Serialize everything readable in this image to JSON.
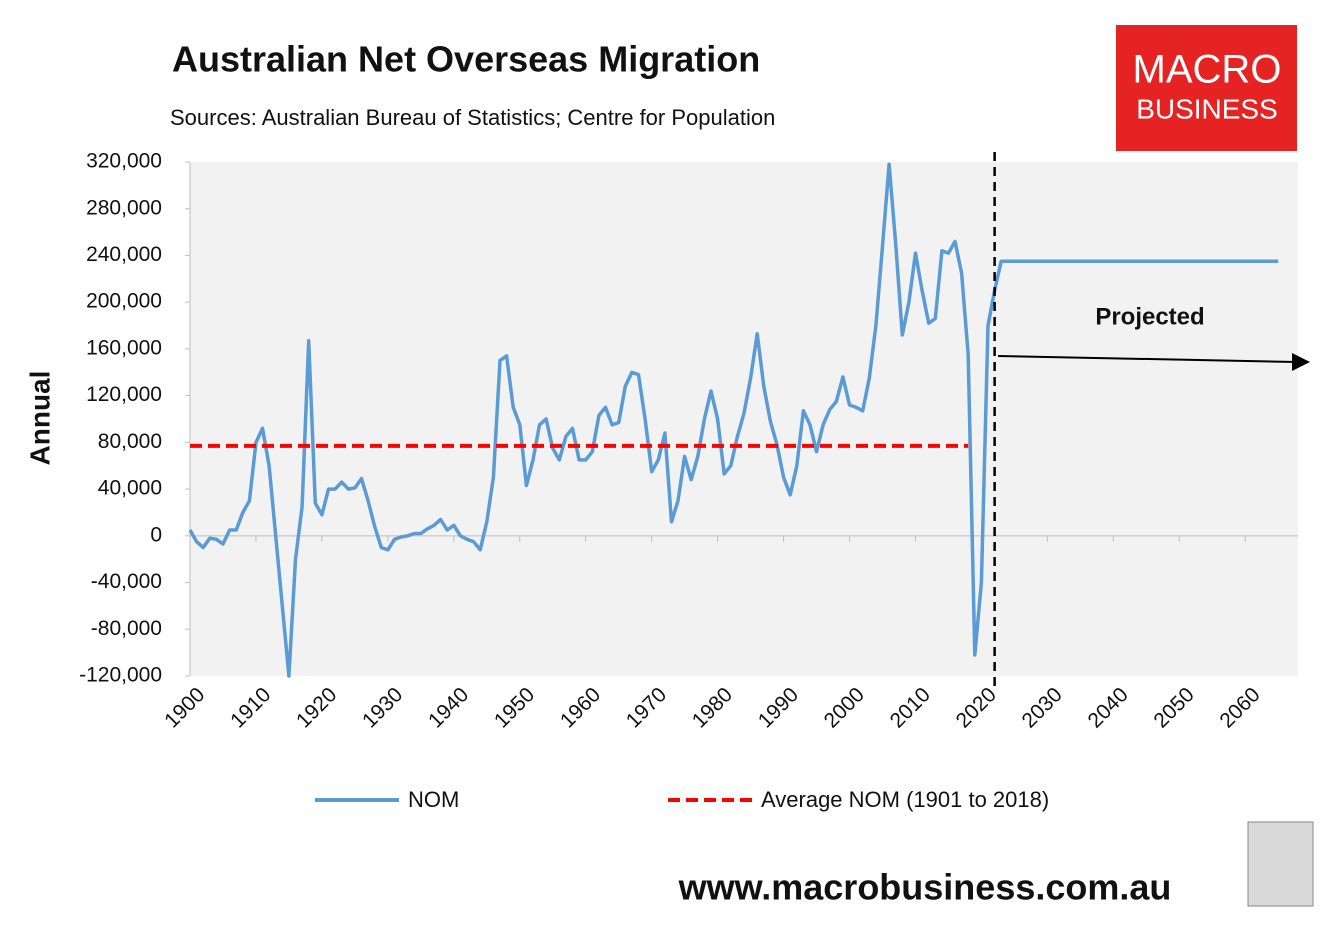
{
  "chart_data": {
    "type": "line",
    "title": "Australian Net Overseas Migration",
    "subtitle": "Sources: Australian Bureau of Statistics; Centre for Population",
    "y_label": "Annual",
    "logo": [
      "MACRO",
      "BUSINESS"
    ],
    "footer": "www.macrobusiness.com.au",
    "annotation": "Projected",
    "projection_start": 2022,
    "xlim": [
      1900,
      2068
    ],
    "xticks": [
      1900,
      1910,
      1920,
      1930,
      1940,
      1950,
      1960,
      1970,
      1980,
      1990,
      2000,
      2010,
      2020,
      2030,
      2040,
      2050,
      2060
    ],
    "ylim": [
      -120000,
      320000
    ],
    "yticks": [
      {
        "value": -120000,
        "label": "-120,000"
      },
      {
        "value": -80000,
        "label": "-80,000"
      },
      {
        "value": -40000,
        "label": "-40,000"
      },
      0,
      {
        "value": 40000,
        "label": "40,000"
      },
      {
        "value": 80000,
        "label": "80,000"
      },
      {
        "value": 120000,
        "label": "120,000"
      },
      {
        "value": 160000,
        "label": "160,000"
      },
      {
        "value": 200000,
        "label": "200,000"
      },
      {
        "value": 240000,
        "label": "240,000"
      },
      {
        "value": 280000,
        "label": "280,000"
      },
      {
        "value": 320000,
        "label": "320,000"
      }
    ],
    "grid": false,
    "legend": "bottom",
    "series": [
      {
        "name": "NOM",
        "color": "#5b9bd5",
        "dashed": false,
        "x": [
          1900,
          1901,
          1902,
          1903,
          1904,
          1905,
          1906,
          1907,
          1908,
          1909,
          1910,
          1911,
          1912,
          1913,
          1914,
          1915,
          1916,
          1917,
          1918,
          1919,
          1920,
          1921,
          1922,
          1923,
          1924,
          1925,
          1926,
          1927,
          1928,
          1929,
          1930,
          1931,
          1932,
          1933,
          1934,
          1935,
          1936,
          1937,
          1938,
          1939,
          1940,
          1941,
          1942,
          1943,
          1944,
          1945,
          1946,
          1947,
          1948,
          1949,
          1950,
          1951,
          1952,
          1953,
          1954,
          1955,
          1956,
          1957,
          1958,
          1959,
          1960,
          1961,
          1962,
          1963,
          1964,
          1965,
          1966,
          1967,
          1968,
          1969,
          1970,
          1971,
          1972,
          1973,
          1974,
          1975,
          1976,
          1977,
          1978,
          1979,
          1980,
          1981,
          1982,
          1983,
          1984,
          1985,
          1986,
          1987,
          1988,
          1989,
          1990,
          1991,
          1992,
          1993,
          1994,
          1995,
          1996,
          1997,
          1998,
          1999,
          2000,
          2001,
          2002,
          2003,
          2004,
          2005,
          2006,
          2007,
          2008,
          2009,
          2010,
          2011,
          2012,
          2013,
          2014,
          2015,
          2016,
          2017,
          2018,
          2019,
          2020,
          2021,
          2022,
          2023,
          2024,
          2025,
          2026,
          2027,
          2028,
          2029,
          2030,
          2031,
          2032,
          2033,
          2034,
          2035,
          2036,
          2037,
          2038,
          2039,
          2040,
          2041,
          2042,
          2043,
          2044,
          2045,
          2046,
          2047,
          2048,
          2049,
          2050,
          2051,
          2052,
          2053,
          2054,
          2055,
          2056,
          2057,
          2058,
          2059,
          2060,
          2061,
          2062,
          2063,
          2064,
          2065
        ],
        "values": [
          5000,
          -5000,
          -10000,
          -2000,
          -3000,
          -7000,
          5000,
          5000,
          20000,
          30000,
          80000,
          92000,
          60000,
          0,
          -60000,
          -120000,
          -20000,
          25000,
          167000,
          28000,
          18000,
          40000,
          40000,
          46000,
          40000,
          41000,
          49000,
          30000,
          8000,
          -10000,
          -12000,
          -3000,
          -1000,
          0,
          2000,
          2000,
          6000,
          9000,
          14000,
          5000,
          9000,
          0,
          -3000,
          -5000,
          -12000,
          12000,
          50000,
          150000,
          154000,
          110000,
          95000,
          43000,
          65000,
          95000,
          100000,
          75000,
          65000,
          85000,
          92000,
          65000,
          65000,
          72000,
          103000,
          110000,
          95000,
          97000,
          128000,
          140000,
          138000,
          100000,
          55000,
          65000,
          88000,
          12000,
          30000,
          68000,
          48000,
          68000,
          100000,
          124000,
          100000,
          53000,
          60000,
          85000,
          105000,
          135000,
          173000,
          128000,
          98000,
          78000,
          50000,
          35000,
          60000,
          107000,
          95000,
          72000,
          95000,
          108000,
          115000,
          136000,
          112000,
          110000,
          107000,
          135000,
          180000,
          248000,
          318000,
          250000,
          172000,
          200000,
          242000,
          210000,
          182000,
          186000,
          244000,
          242000,
          252000,
          225000,
          155000,
          -102000,
          -40000,
          180000,
          210000,
          235000,
          235000,
          235000,
          235000,
          235000,
          235000,
          235000,
          235000,
          235000,
          235000,
          235000,
          235000,
          235000,
          235000,
          235000,
          235000,
          235000,
          235000,
          235000,
          235000,
          235000,
          235000,
          235000,
          235000,
          235000,
          235000,
          235000,
          235000,
          235000,
          235000,
          235000,
          235000,
          235000,
          235000,
          235000,
          235000,
          235000,
          235000,
          235000,
          235000,
          235000,
          235000,
          235000
        ]
      },
      {
        "name": "Average NOM (1901 to 2018)",
        "color": "#ff0000",
        "dashed": true,
        "x": [
          1900,
          2018
        ],
        "values": [
          77000,
          77000
        ]
      }
    ]
  }
}
